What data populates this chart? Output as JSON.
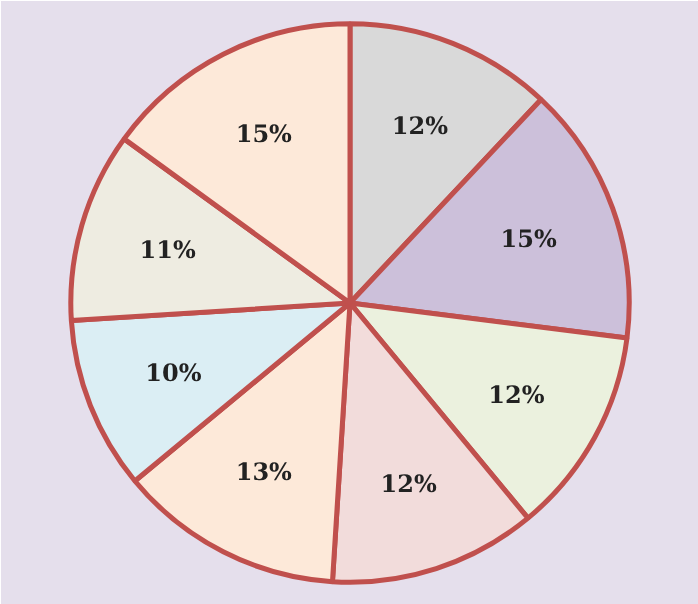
{
  "chart_data": {
    "type": "pie",
    "categories": [
      null,
      null,
      null,
      null,
      null,
      null,
      null,
      null
    ],
    "values": [
      12,
      15,
      12,
      12,
      13,
      10,
      11,
      15
    ],
    "colors": [
      "#d9d9d9",
      "#ccc0da",
      "#ebf1de",
      "#f2dcdb",
      "#fde9d9",
      "#dbeef4",
      "#eeece1",
      "#fde9d9"
    ],
    "value_labels": [
      "12%",
      "15%",
      "12%",
      "12%",
      "13%",
      "10%",
      "11%",
      "15%"
    ]
  }
}
